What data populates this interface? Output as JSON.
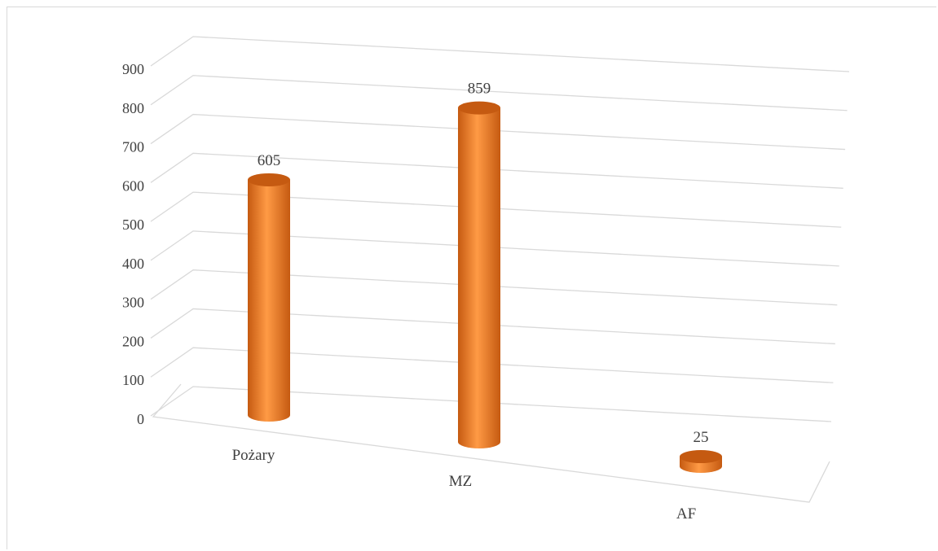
{
  "chart_data": {
    "type": "bar",
    "style": "3d-cylinder",
    "categories": [
      "Pożary",
      "MZ",
      "AF"
    ],
    "values": [
      605,
      859,
      25
    ],
    "data_labels": [
      "605",
      "859",
      "25"
    ],
    "title": "",
    "xlabel": "",
    "ylabel": "",
    "ylim": [
      0,
      900
    ],
    "yticks": [
      0,
      100,
      200,
      300,
      400,
      500,
      600,
      700,
      800,
      900
    ],
    "ytick_labels": [
      "0",
      "100",
      "200",
      "300",
      "400",
      "500",
      "600",
      "700",
      "800",
      "900"
    ],
    "grid": true,
    "legend": "none",
    "colors": {
      "bar": "#ed7d31",
      "bar_highlight": "#ff9a45",
      "bar_shadow": "#c55a11",
      "grid": "#d9d9d9",
      "text": "#404040"
    }
  }
}
